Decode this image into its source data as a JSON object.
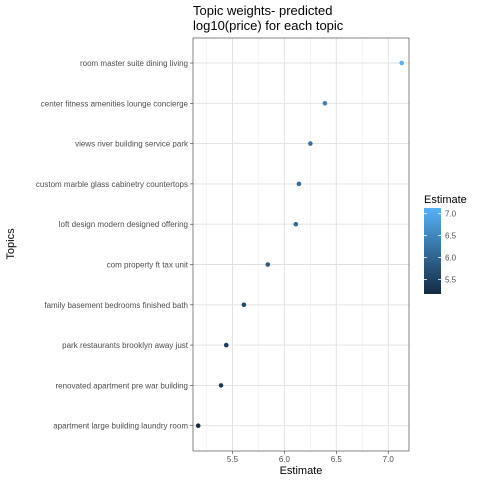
{
  "chart_data": {
    "type": "scatter",
    "title_lines": [
      "Topic weights- predicted",
      "log10(price) for each topic"
    ],
    "xlabel": "Estimate",
    "ylabel": "Topics",
    "xlim": [
      5.12,
      7.2
    ],
    "x_ticks": [
      5.5,
      6.0,
      6.5,
      7.0
    ],
    "x_tick_labels": [
      "5.5",
      "6.0",
      "6.5",
      "7.0"
    ],
    "grid": true,
    "categories": [
      "room master suite dining living",
      "center fitness amenities lounge concierge",
      "views river building service park",
      "custom marble glass cabinetry countertops",
      "loft design modern designed offering",
      "com property ft tax unit",
      "family basement bedrooms finished bath",
      "park restaurants brooklyn away just",
      "renovated apartment pre war building",
      "apartment large building laundry room"
    ],
    "values": [
      7.13,
      6.39,
      6.25,
      6.14,
      6.11,
      5.84,
      5.61,
      5.44,
      5.39,
      5.17
    ],
    "legend": {
      "title": "Estimate",
      "position": "right",
      "range": [
        5.17,
        7.13
      ],
      "ticks": [
        5.5,
        6.0,
        6.5,
        7.0
      ],
      "tick_labels": [
        "5.5",
        "6.0",
        "6.5",
        "7.0"
      ],
      "color_low": "#132b43",
      "color_high": "#56b1f7"
    }
  }
}
